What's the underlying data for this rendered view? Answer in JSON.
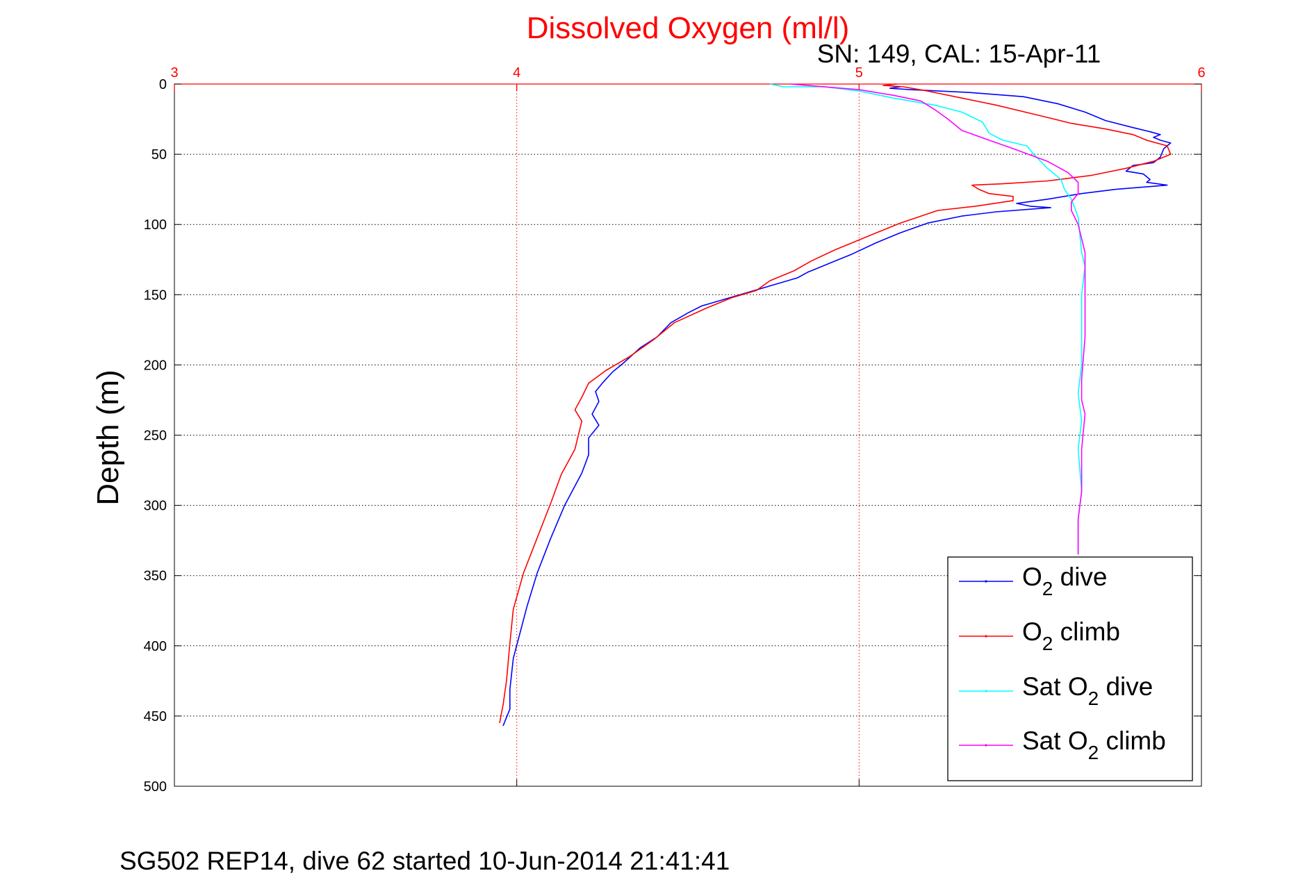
{
  "chart_data": {
    "type": "line",
    "title": "Dissolved Oxygen (ml/l)",
    "subtitle": "SN: 149, CAL: 15-Apr-11",
    "ylabel": "Depth (m)",
    "caption": "SG502 REP14, dive 62 started 10-Jun-2014 21:41:41",
    "xlim": [
      3,
      6
    ],
    "ylim": [
      0,
      500
    ],
    "y_reversed": true,
    "x_axis_position": "top",
    "x_ticks": [
      "3",
      "4",
      "5",
      "6"
    ],
    "y_ticks": [
      "0",
      "50",
      "100",
      "150",
      "200",
      "250",
      "300",
      "350",
      "400",
      "450",
      "500"
    ],
    "grid": true,
    "legend_position": "bottom-right",
    "colors": {
      "title": "#ff0000",
      "x_axis": "#ff0000",
      "grid_x": "#ff0000",
      "grid_y": "#000000"
    },
    "series": [
      {
        "legend_main": "O",
        "legend_sub": "2",
        "legend_suffix": " dive",
        "color": "#0000ff",
        "points": [
          [
            5.08,
            1
          ],
          [
            5.12,
            2
          ],
          [
            5.09,
            3
          ],
          [
            5.15,
            4
          ],
          [
            5.32,
            6
          ],
          [
            5.48,
            9
          ],
          [
            5.58,
            14
          ],
          [
            5.66,
            20
          ],
          [
            5.72,
            26
          ],
          [
            5.8,
            31
          ],
          [
            5.85,
            34
          ],
          [
            5.88,
            36
          ],
          [
            5.86,
            38
          ],
          [
            5.88,
            40
          ],
          [
            5.91,
            42
          ],
          [
            5.89,
            46
          ],
          [
            5.88,
            52
          ],
          [
            5.86,
            56
          ],
          [
            5.8,
            58
          ],
          [
            5.78,
            62
          ],
          [
            5.83,
            64
          ],
          [
            5.85,
            68
          ],
          [
            5.84,
            70
          ],
          [
            5.9,
            72
          ],
          [
            5.75,
            75
          ],
          [
            5.65,
            78
          ],
          [
            5.55,
            82
          ],
          [
            5.46,
            85
          ],
          [
            5.5,
            87
          ],
          [
            5.56,
            88
          ],
          [
            5.4,
            91
          ],
          [
            5.3,
            94
          ],
          [
            5.2,
            99
          ],
          [
            5.12,
            106
          ],
          [
            5.05,
            113
          ],
          [
            4.98,
            121
          ],
          [
            4.92,
            127
          ],
          [
            4.88,
            131
          ],
          [
            4.85,
            134
          ],
          [
            4.82,
            138
          ],
          [
            4.75,
            143
          ],
          [
            4.68,
            148
          ],
          [
            4.61,
            153
          ],
          [
            4.54,
            158
          ],
          [
            4.5,
            163
          ],
          [
            4.45,
            170
          ],
          [
            4.41,
            180
          ],
          [
            4.36,
            188
          ],
          [
            4.31,
            199
          ],
          [
            4.28,
            205
          ],
          [
            4.25,
            213
          ],
          [
            4.23,
            219
          ],
          [
            4.24,
            226
          ],
          [
            4.22,
            235
          ],
          [
            4.24,
            243
          ],
          [
            4.21,
            252
          ],
          [
            4.21,
            264
          ],
          [
            4.19,
            277
          ],
          [
            4.14,
            300
          ],
          [
            4.1,
            323
          ],
          [
            4.06,
            348
          ],
          [
            4.03,
            372
          ],
          [
            3.99,
            409
          ],
          [
            3.98,
            431
          ],
          [
            3.98,
            445
          ],
          [
            3.96,
            457
          ]
        ]
      },
      {
        "legend_main": "O",
        "legend_sub": "2",
        "legend_suffix": " climb",
        "color": "#ff0000",
        "points": [
          [
            5.11,
            0
          ],
          [
            5.07,
            1
          ],
          [
            5.13,
            2
          ],
          [
            5.2,
            5
          ],
          [
            5.3,
            10
          ],
          [
            5.4,
            15
          ],
          [
            5.52,
            22
          ],
          [
            5.62,
            28
          ],
          [
            5.72,
            32
          ],
          [
            5.8,
            36
          ],
          [
            5.84,
            40
          ],
          [
            5.9,
            44
          ],
          [
            5.91,
            50
          ],
          [
            5.86,
            55
          ],
          [
            5.78,
            60
          ],
          [
            5.68,
            65
          ],
          [
            5.55,
            69
          ],
          [
            5.42,
            71
          ],
          [
            5.33,
            72
          ],
          [
            5.35,
            75
          ],
          [
            5.38,
            78
          ],
          [
            5.45,
            80
          ],
          [
            5.45,
            83
          ],
          [
            5.34,
            87
          ],
          [
            5.23,
            90
          ],
          [
            5.12,
            99
          ],
          [
            5.05,
            106
          ],
          [
            4.98,
            113
          ],
          [
            4.93,
            118
          ],
          [
            4.86,
            126
          ],
          [
            4.81,
            133
          ],
          [
            4.74,
            140
          ],
          [
            4.7,
            147
          ],
          [
            4.63,
            152
          ],
          [
            4.55,
            160
          ],
          [
            4.46,
            170
          ],
          [
            4.4,
            182
          ],
          [
            4.33,
            194
          ],
          [
            4.26,
            204
          ],
          [
            4.21,
            213
          ],
          [
            4.19,
            223
          ],
          [
            4.17,
            232
          ],
          [
            4.19,
            240
          ],
          [
            4.18,
            250
          ],
          [
            4.17,
            260
          ],
          [
            4.13,
            278
          ],
          [
            4.1,
            298
          ],
          [
            4.06,
            323
          ],
          [
            4.02,
            348
          ],
          [
            3.99,
            374
          ],
          [
            3.98,
            398
          ],
          [
            3.97,
            425
          ],
          [
            3.96,
            442
          ],
          [
            3.95,
            455
          ]
        ]
      },
      {
        "legend_main": "Sat O",
        "legend_sub": "2",
        "legend_suffix": " dive",
        "color": "#00ffff",
        "points": [
          [
            4.74,
            0
          ],
          [
            4.78,
            2
          ],
          [
            4.9,
            2
          ],
          [
            5.0,
            5
          ],
          [
            5.1,
            10
          ],
          [
            5.22,
            15
          ],
          [
            5.3,
            20
          ],
          [
            5.36,
            27
          ],
          [
            5.38,
            35
          ],
          [
            5.42,
            40
          ],
          [
            5.49,
            44
          ],
          [
            5.51,
            50
          ],
          [
            5.55,
            60
          ],
          [
            5.59,
            68
          ],
          [
            5.6,
            75
          ],
          [
            5.62,
            82
          ],
          [
            5.63,
            88
          ],
          [
            5.64,
            95
          ],
          [
            5.65,
            120
          ],
          [
            5.66,
            130
          ],
          [
            5.65,
            150
          ],
          [
            5.65,
            200
          ],
          [
            5.64,
            220
          ],
          [
            5.65,
            240
          ],
          [
            5.64,
            260
          ],
          [
            5.65,
            290
          ],
          [
            5.64,
            310
          ],
          [
            5.64,
            335
          ]
        ]
      },
      {
        "legend_main": "Sat O",
        "legend_sub": "2",
        "legend_suffix": " climb",
        "color": "#ff00ff",
        "points": [
          [
            4.8,
            0
          ],
          [
            5.0,
            4
          ],
          [
            5.1,
            8
          ],
          [
            5.18,
            12
          ],
          [
            5.22,
            18
          ],
          [
            5.26,
            25
          ],
          [
            5.3,
            33
          ],
          [
            5.38,
            40
          ],
          [
            5.45,
            46
          ],
          [
            5.55,
            55
          ],
          [
            5.61,
            63
          ],
          [
            5.64,
            70
          ],
          [
            5.64,
            78
          ],
          [
            5.62,
            84
          ],
          [
            5.62,
            90
          ],
          [
            5.64,
            100
          ],
          [
            5.66,
            120
          ],
          [
            5.66,
            150
          ],
          [
            5.66,
            180
          ],
          [
            5.65,
            210
          ],
          [
            5.65,
            225
          ],
          [
            5.66,
            235
          ],
          [
            5.65,
            260
          ],
          [
            5.65,
            290
          ],
          [
            5.64,
            310
          ],
          [
            5.64,
            335
          ]
        ]
      }
    ]
  }
}
